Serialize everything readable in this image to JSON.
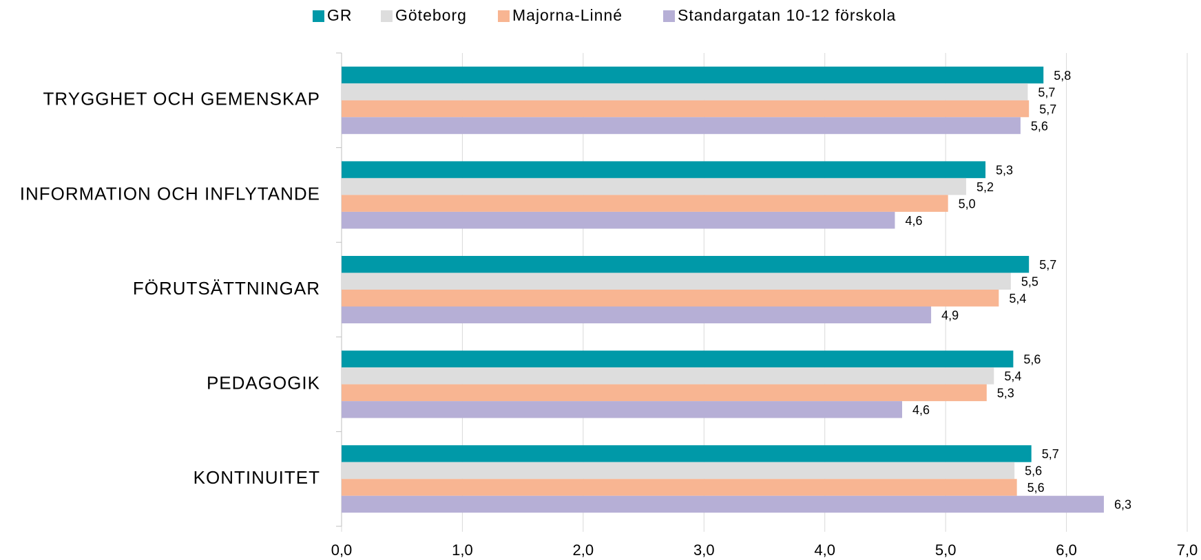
{
  "chart_data": {
    "type": "bar",
    "orientation": "horizontal",
    "categories": [
      "TRYGGHET OCH GEMENSKAP",
      "INFORMATION OCH INFLYTANDE",
      "FÖRUTSÄTTNINGAR",
      "PEDAGOGIK",
      "KONTINUITET"
    ],
    "series": [
      {
        "name": "GR",
        "color": "#0099a8",
        "values": [
          5.81,
          5.33,
          5.69,
          5.56,
          5.71
        ],
        "value_labels": [
          "5,8",
          "5,3",
          "5,7",
          "5,6",
          "5,7"
        ]
      },
      {
        "name": "Göteborg",
        "color": "#dddddd",
        "values": [
          5.68,
          5.17,
          5.54,
          5.4,
          5.57
        ],
        "value_labels": [
          "5,7",
          "5,2",
          "5,5",
          "5,4",
          "5,6"
        ]
      },
      {
        "name": "Majorna-Linné",
        "color": "#f8b592",
        "values": [
          5.69,
          5.02,
          5.44,
          5.34,
          5.59
        ],
        "value_labels": [
          "5,7",
          "5,0",
          "5,4",
          "5,3",
          "5,6"
        ]
      },
      {
        "name": "Standargatan 10-12 förskola",
        "color": "#b6afd6",
        "values": [
          5.62,
          4.58,
          4.88,
          4.64,
          6.31
        ],
        "value_labels": [
          "5,6",
          "4,6",
          "4,9",
          "4,6",
          "6,3"
        ]
      }
    ],
    "xlim": [
      0,
      7
    ],
    "xticks": [
      {
        "value": 0,
        "label": "0,0"
      },
      {
        "value": 1,
        "label": "1,0"
      },
      {
        "value": 2,
        "label": "2,0"
      },
      {
        "value": 3,
        "label": "3,0"
      },
      {
        "value": 4,
        "label": "4,0"
      },
      {
        "value": 5,
        "label": "5,0"
      },
      {
        "value": 6,
        "label": "6,0"
      },
      {
        "value": 7,
        "label": "7,0"
      }
    ],
    "grid": true,
    "legend": "top"
  }
}
